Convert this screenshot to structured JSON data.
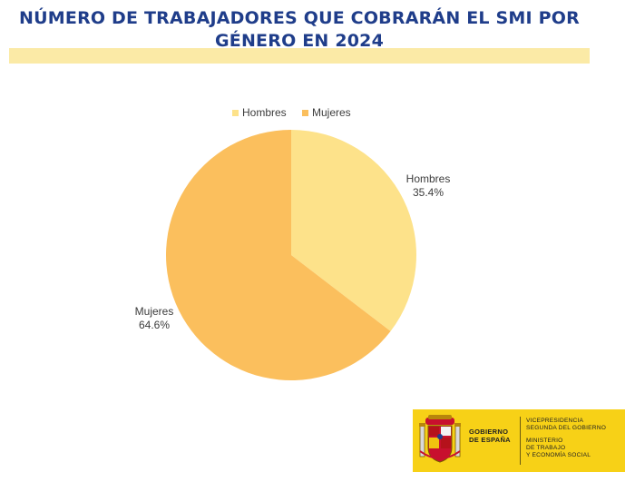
{
  "title_lines": [
    "NÚMERO DE TRABAJADORES QUE COBRARÁN EL SMI POR",
    "GÉNERO EN 2024"
  ],
  "colors": {
    "title": "#1f3d8a",
    "hombres": "#fde28a",
    "mujeres": "#fbbf5d",
    "band": "#fbeaa6",
    "logo_bg": "#f7d117"
  },
  "chart_data": {
    "type": "pie",
    "title": "NÚMERO DE TRABAJADORES QUE COBRARÁN EL SMI POR GÉNERO EN 2024",
    "labels": [
      "Hombres",
      "Mujeres"
    ],
    "values": [
      35.4,
      64.6
    ],
    "value_labels": [
      "35.4%",
      "64.6%"
    ],
    "legend": {
      "position": "top",
      "entries": [
        "Hombres",
        "Mujeres"
      ]
    }
  },
  "logo": {
    "left_lines": [
      "GOBIERNO",
      "DE ESPAÑA"
    ],
    "right_top_lines": [
      "VICEPRESIDENCIA",
      "SEGUNDA DEL GOBIERNO"
    ],
    "right_bottom_lines": [
      "MINISTERIO",
      "DE TRABAJO",
      "Y ECONOMÍA SOCIAL"
    ]
  }
}
